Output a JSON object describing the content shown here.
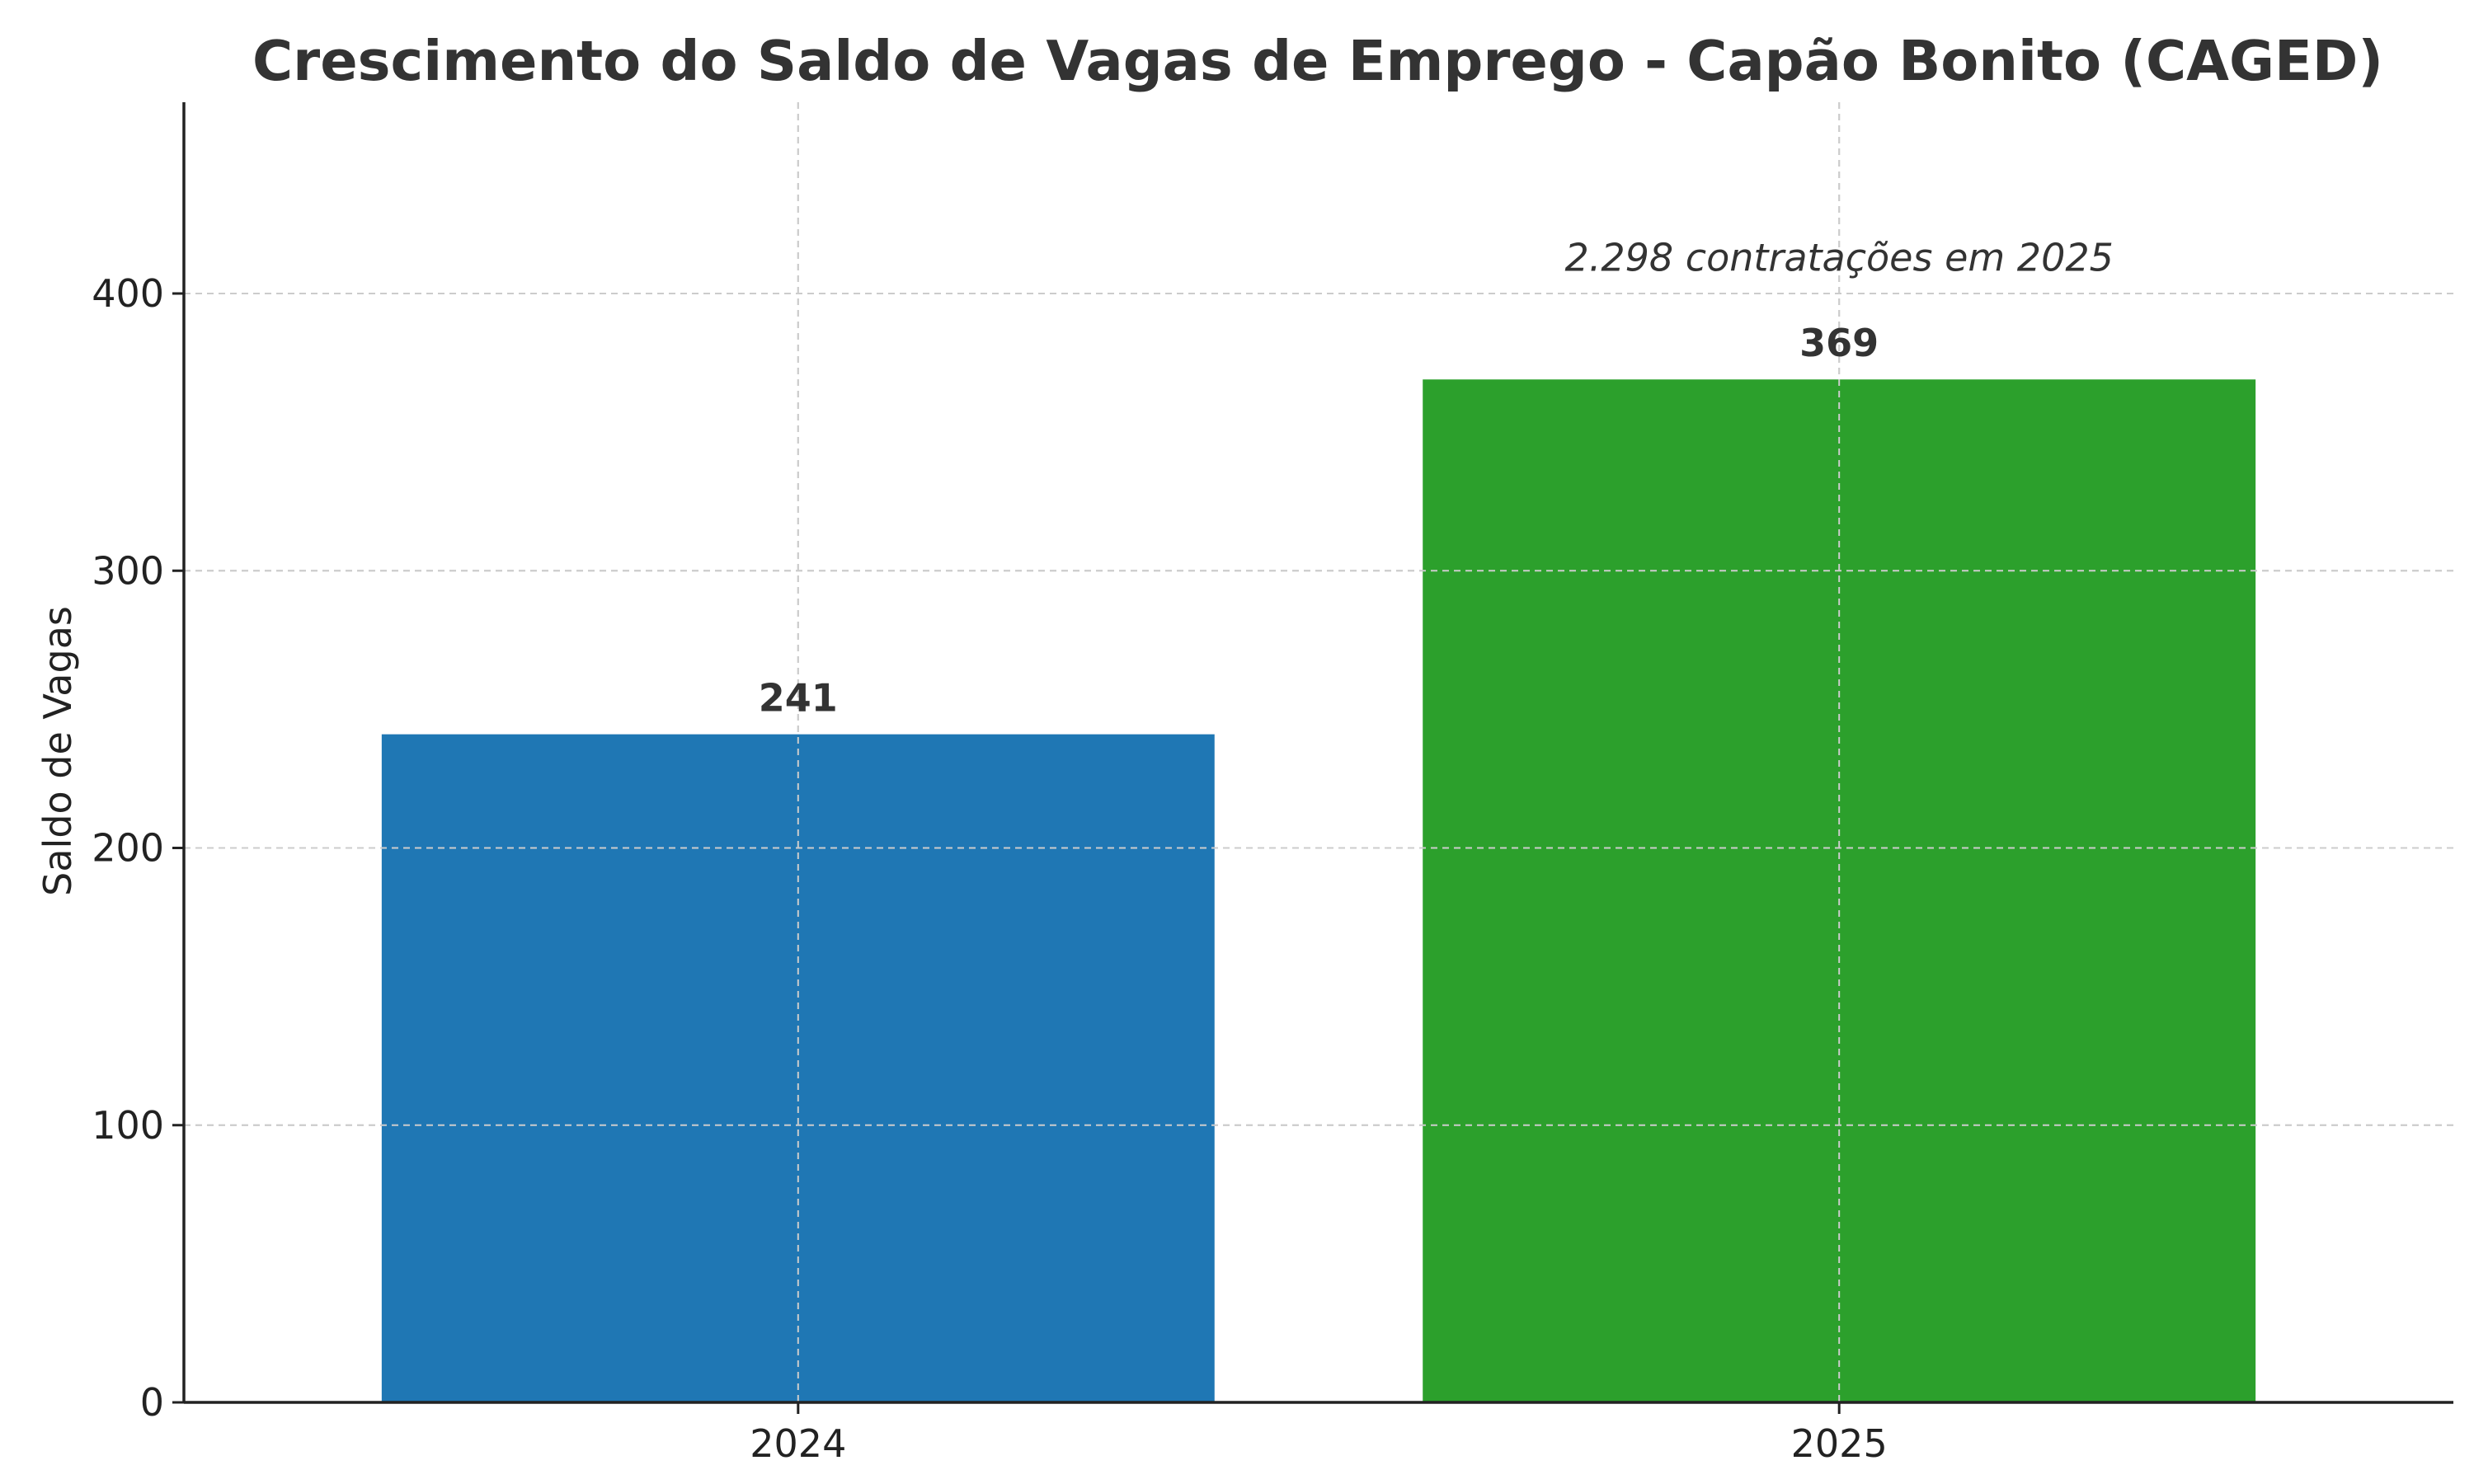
{
  "chart_data": {
    "type": "bar",
    "title": "Crescimento do Saldo de Vagas de Emprego - Capão Bonito (CAGED)",
    "xlabel": "",
    "ylabel": "Saldo de Vagas",
    "categories": [
      "2024",
      "2025"
    ],
    "values": [
      241,
      369
    ],
    "value_labels": [
      "241",
      "369"
    ],
    "colors": [
      "#1f77b4",
      "#2ca02c"
    ],
    "ylim": [
      0,
      469
    ],
    "yticks": [
      0,
      100,
      200,
      300,
      400
    ],
    "ytick_labels": [
      "0",
      "100",
      "200",
      "300",
      "400"
    ],
    "grid": true,
    "annotation": {
      "text": "2.298 contratações em 2025",
      "category": "2025",
      "y": 413
    }
  }
}
